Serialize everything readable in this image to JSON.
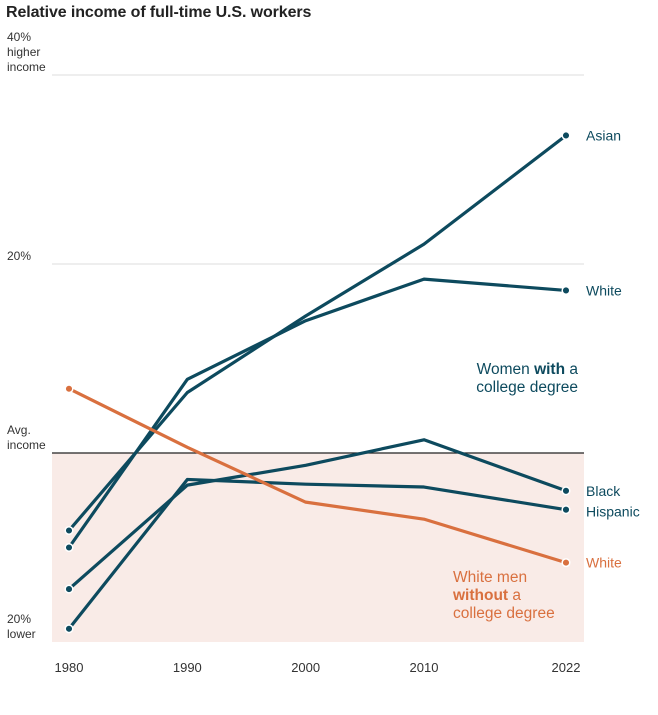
{
  "chart_data": {
    "type": "line",
    "title": "Relative income of full-time U.S. workers",
    "x": [
      1980,
      1990,
      2000,
      2010,
      2022
    ],
    "x_tick_labels": [
      "1980",
      "1990",
      "2000",
      "2010",
      "2022"
    ],
    "ylim": [
      -20,
      40
    ],
    "y_ticks": [
      {
        "value": 40,
        "lines": [
          "40%",
          "higher",
          "income"
        ]
      },
      {
        "value": 20,
        "lines": [
          "20%"
        ]
      },
      {
        "value": 0,
        "lines": [
          "Avg.",
          "income"
        ]
      },
      {
        "value": -20,
        "lines": [
          "20%",
          "lower"
        ]
      }
    ],
    "series": [
      {
        "name": "Asian",
        "group": "women_college",
        "color": "#0d4a5e",
        "values": [
          -8.2,
          6.4,
          14.5,
          22.1,
          33.6
        ]
      },
      {
        "name": "White",
        "group": "women_college",
        "color": "#0d4a5e",
        "values": [
          -10,
          7.8,
          14,
          18.4,
          17.2
        ]
      },
      {
        "name": "Black",
        "group": "women_college",
        "color": "#0d4a5e",
        "values": [
          -14.4,
          -3.4,
          -1.3,
          1.4,
          -4
        ]
      },
      {
        "name": "Hispanic",
        "group": "women_college",
        "color": "#0d4a5e",
        "values": [
          -18.6,
          -2.8,
          -3.3,
          -3.6,
          -6
        ]
      },
      {
        "name": "White",
        "group": "men_no_college",
        "color": "#d9703f",
        "values": [
          6.8,
          0.6,
          -5.2,
          -7,
          -11.6
        ]
      }
    ],
    "group_labels": {
      "women_college": {
        "parts": [
          "Women ",
          "with",
          " a",
          "college degree"
        ],
        "color": "#0d4a5e"
      },
      "men_no_college": {
        "parts": [
          "White men",
          "without",
          " a",
          "college degree"
        ],
        "color": "#d9703f"
      }
    },
    "below_average_shading": "#f9ebe7",
    "grid": true
  }
}
